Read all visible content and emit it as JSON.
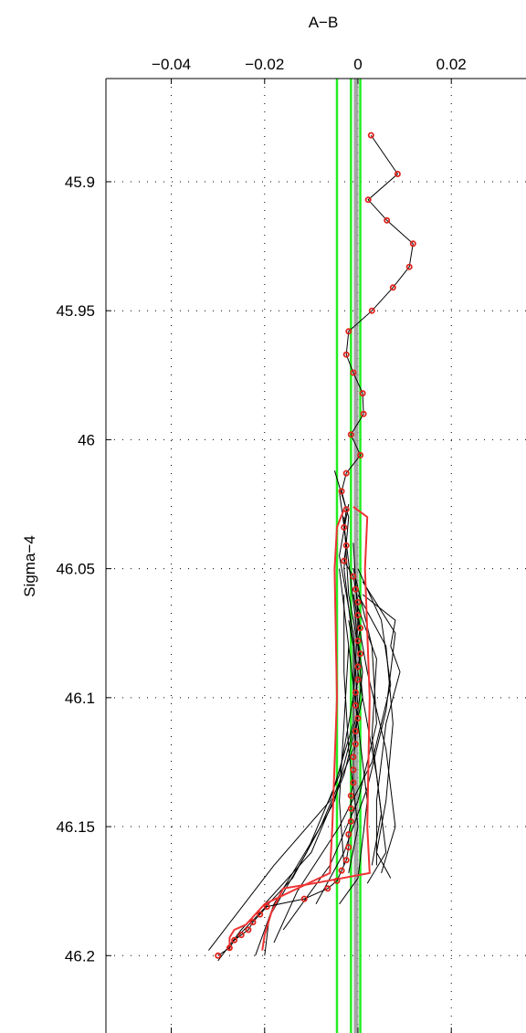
{
  "chart_data": {
    "type": "line",
    "xlabel": "A−B",
    "ylabel": "Sigma−4",
    "x_axis_position": "top",
    "y_reversed": true,
    "xlim": [
      -0.054,
      0.036
    ],
    "ylim": [
      45.86,
      46.23
    ],
    "xticks": [
      -0.04,
      -0.02,
      0,
      0.02
    ],
    "xtick_labels": [
      "−0.04",
      "−0.02",
      "0",
      "0.02"
    ],
    "yticks": [
      45.9,
      45.95,
      46.0,
      46.05,
      46.1,
      46.15,
      46.2
    ],
    "ytick_labels": [
      "45.9",
      "45.95",
      "46",
      "46.05",
      "46.1",
      "46.15",
      "46.2"
    ],
    "grid": true,
    "colors": {
      "profiles": "#000000",
      "mean_markers": "#e0231c",
      "envelope": "#ee3333",
      "reference_lines": "#22ee22",
      "reference_center": "#888888"
    },
    "reference_lines_x": [
      -0.0045,
      -0.0015,
      0.0005
    ],
    "mean_profile": {
      "name": "mean",
      "points": [
        [
          0.0028,
          45.882
        ],
        [
          0.0085,
          45.897
        ],
        [
          0.0022,
          45.907
        ],
        [
          0.0062,
          45.915
        ],
        [
          0.0118,
          45.924
        ],
        [
          0.011,
          45.933
        ],
        [
          0.0075,
          45.941
        ],
        [
          0.003,
          45.95
        ],
        [
          -0.002,
          45.958
        ],
        [
          -0.0025,
          45.967
        ],
        [
          -0.001,
          45.974
        ],
        [
          0.001,
          45.982
        ],
        [
          0.0012,
          45.99
        ],
        [
          -0.0015,
          45.998
        ],
        [
          0.0005,
          46.006
        ],
        [
          -0.0025,
          46.013
        ],
        [
          -0.0035,
          46.02
        ],
        [
          -0.0025,
          46.027
        ],
        [
          -0.003,
          46.034
        ],
        [
          -0.0025,
          46.041
        ],
        [
          -0.003,
          46.047
        ],
        [
          -0.001,
          46.053
        ],
        [
          -0.0005,
          46.058
        ],
        [
          0.0,
          46.063
        ],
        [
          0.0,
          46.068
        ],
        [
          0.0005,
          46.073
        ],
        [
          0.0,
          46.078
        ],
        [
          0.0005,
          46.083
        ],
        [
          0.0,
          46.088
        ],
        [
          0.0,
          46.093
        ],
        [
          -0.0005,
          46.098
        ],
        [
          -0.0005,
          46.103
        ],
        [
          0.0,
          46.108
        ],
        [
          -0.0005,
          46.113
        ],
        [
          -0.0005,
          46.118
        ],
        [
          -0.001,
          46.123
        ],
        [
          -0.001,
          46.128
        ],
        [
          -0.001,
          46.133
        ],
        [
          -0.0015,
          46.138
        ],
        [
          -0.0015,
          46.143
        ],
        [
          -0.0015,
          46.148
        ],
        [
          -0.002,
          46.153
        ],
        [
          -0.002,
          46.158
        ],
        [
          -0.0025,
          46.163
        ],
        [
          -0.0035,
          46.167
        ],
        [
          -0.0045,
          46.171
        ],
        [
          -0.0065,
          46.174
        ],
        [
          -0.0115,
          46.178
        ],
        [
          -0.0195,
          46.181
        ],
        [
          -0.021,
          46.184
        ],
        [
          -0.0225,
          46.187
        ],
        [
          -0.0235,
          46.19
        ],
        [
          -0.025,
          46.192
        ],
        [
          -0.0265,
          46.194
        ],
        [
          -0.0275,
          46.197
        ],
        [
          -0.03,
          46.2
        ]
      ]
    },
    "envelope": {
      "left": [
        [
          -0.003,
          46.027
        ],
        [
          -0.0045,
          46.034
        ],
        [
          -0.005,
          46.05
        ],
        [
          -0.0045,
          46.1
        ],
        [
          -0.0055,
          46.15
        ],
        [
          -0.006,
          46.168
        ],
        [
          -0.02,
          46.18
        ],
        [
          -0.024,
          46.188
        ],
        [
          -0.0265,
          46.19
        ],
        [
          -0.0275,
          46.193
        ],
        [
          -0.0275,
          46.198
        ]
      ],
      "right": [
        [
          -0.001,
          46.026
        ],
        [
          0.002,
          46.03
        ],
        [
          0.0015,
          46.05
        ],
        [
          0.0025,
          46.1
        ],
        [
          0.002,
          46.15
        ],
        [
          0.0025,
          46.168
        ],
        [
          -0.0095,
          46.172
        ],
        [
          -0.016,
          46.174
        ],
        [
          -0.0185,
          46.183
        ],
        [
          -0.02,
          46.192
        ],
        [
          -0.0205,
          46.198
        ]
      ]
    },
    "profiles": [
      {
        "points": [
          [
            -0.005,
            46.012
          ],
          [
            -0.002,
            46.03
          ],
          [
            -0.003,
            46.05
          ],
          [
            -0.001,
            46.08
          ],
          [
            -0.001,
            46.11
          ],
          [
            -0.006,
            46.14
          ],
          [
            -0.018,
            46.165
          ],
          [
            -0.032,
            46.198
          ]
        ]
      },
      {
        "points": [
          [
            -0.004,
            46.02
          ],
          [
            -0.0025,
            46.04
          ],
          [
            -0.0005,
            46.07
          ],
          [
            0.001,
            46.1
          ],
          [
            -0.003,
            46.13
          ],
          [
            -0.01,
            46.16
          ],
          [
            -0.025,
            46.19
          ],
          [
            -0.03,
            46.202
          ]
        ]
      },
      {
        "points": [
          [
            -0.002,
            46.025
          ],
          [
            -0.004,
            46.045
          ],
          [
            -0.001,
            46.075
          ],
          [
            0.0,
            46.105
          ],
          [
            -0.005,
            46.14
          ],
          [
            -0.014,
            46.17
          ],
          [
            -0.027,
            46.195
          ]
        ]
      },
      {
        "points": [
          [
            -0.003,
            46.03
          ],
          [
            -0.002,
            46.06
          ],
          [
            0.001,
            46.09
          ],
          [
            -0.001,
            46.12
          ],
          [
            -0.008,
            46.15
          ],
          [
            -0.018,
            46.18
          ],
          [
            -0.022,
            46.2
          ]
        ]
      },
      {
        "points": [
          [
            -0.001,
            46.04
          ],
          [
            0.0,
            46.07
          ],
          [
            -0.001,
            46.1
          ],
          [
            -0.004,
            46.13
          ],
          [
            -0.011,
            46.16
          ],
          [
            -0.019,
            46.185
          ],
          [
            -0.02,
            46.2
          ]
        ]
      },
      {
        "points": [
          [
            0.0,
            46.05
          ],
          [
            0.005,
            46.07
          ],
          [
            0.007,
            46.095
          ],
          [
            0.003,
            46.125
          ],
          [
            -0.004,
            46.15
          ],
          [
            -0.013,
            46.175
          ],
          [
            -0.018,
            46.195
          ]
        ]
      },
      {
        "points": [
          [
            0.001,
            46.055
          ],
          [
            0.008,
            46.075
          ],
          [
            0.006,
            46.105
          ],
          [
            0.002,
            46.135
          ],
          [
            -0.003,
            46.16
          ],
          [
            -0.009,
            46.18
          ]
        ]
      },
      {
        "points": [
          [
            -0.001,
            46.05
          ],
          [
            0.003,
            46.08
          ],
          [
            0.004,
            46.11
          ],
          [
            0.0,
            46.14
          ],
          [
            -0.006,
            46.165
          ],
          [
            -0.016,
            46.19
          ]
        ]
      },
      {
        "points": [
          [
            0.0,
            46.06
          ],
          [
            0.006,
            46.08
          ],
          [
            0.0075,
            46.11
          ],
          [
            0.006,
            46.14
          ],
          [
            0.004,
            46.16
          ],
          [
            0.007,
            46.17
          ]
        ]
      },
      {
        "points": [
          [
            -0.001,
            46.06
          ],
          [
            0.002,
            46.09
          ],
          [
            0.006,
            46.12
          ],
          [
            0.008,
            46.15
          ],
          [
            0.005,
            46.168
          ]
        ]
      },
      {
        "points": [
          [
            0.0,
            46.065
          ],
          [
            0.004,
            46.085
          ],
          [
            0.003,
            46.115
          ],
          [
            0.005,
            46.145
          ],
          [
            0.003,
            46.165
          ]
        ]
      },
      {
        "points": [
          [
            -0.002,
            46.07
          ],
          [
            0.001,
            46.1
          ],
          [
            0.004,
            46.13
          ],
          [
            0.006,
            46.16
          ],
          [
            0.002,
            46.172
          ]
        ]
      },
      {
        "points": [
          [
            -0.003,
            46.06
          ],
          [
            -0.003,
            46.09
          ],
          [
            -0.002,
            46.12
          ],
          [
            0.0,
            46.15
          ],
          [
            -0.002,
            46.168
          ]
        ]
      },
      {
        "points": [
          [
            -0.004,
            46.05
          ],
          [
            -0.002,
            46.08
          ],
          [
            -0.003,
            46.11
          ],
          [
            -0.004,
            46.14
          ],
          [
            -0.003,
            46.165
          ]
        ]
      },
      {
        "points": [
          [
            -0.002,
            46.08
          ],
          [
            0.0,
            46.11
          ],
          [
            0.002,
            46.14
          ],
          [
            0.0,
            46.17
          ],
          [
            -0.004,
            46.18
          ]
        ]
      },
      {
        "points": [
          [
            0.001,
            46.06
          ],
          [
            0.008,
            46.07
          ],
          [
            0.007,
            46.08
          ],
          [
            0.009,
            46.09
          ],
          [
            0.006,
            46.11
          ],
          [
            0.004,
            46.14
          ],
          [
            0.004,
            46.165
          ]
        ]
      }
    ]
  }
}
